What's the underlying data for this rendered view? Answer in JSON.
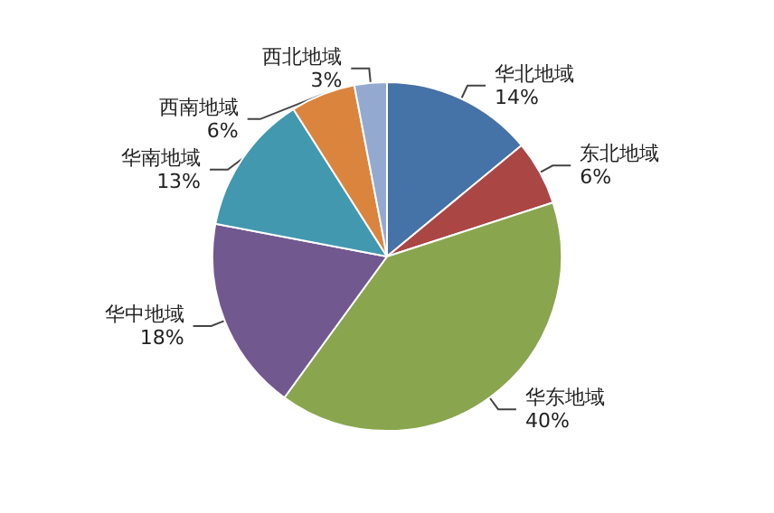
{
  "chart_data": {
    "type": "pie",
    "categories": [
      "华北地域",
      "东北地域",
      "华东地域",
      "华中地域",
      "华南地域",
      "西南地域",
      "西北地域"
    ],
    "values": [
      14,
      6,
      40,
      18,
      13,
      6,
      3
    ],
    "colors": [
      "#4572a7",
      "#aa4643",
      "#89a54e",
      "#71588f",
      "#4198af",
      "#db843d",
      "#93a9cf"
    ],
    "value_labels": [
      "14%",
      "6%",
      "40%",
      "18%",
      "13%",
      "6%",
      "3%"
    ]
  }
}
